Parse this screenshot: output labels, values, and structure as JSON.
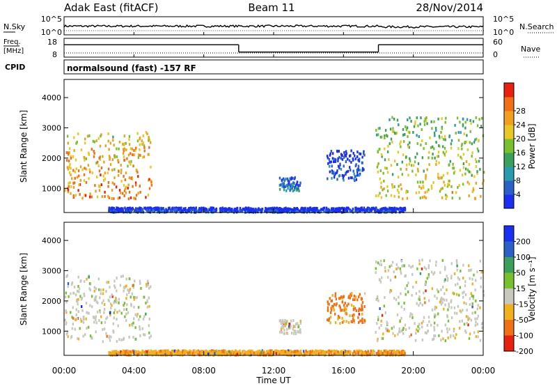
{
  "header": {
    "site": "Adak East (fitACF)",
    "beam": "Beam 11",
    "date": "28/Nov/2014"
  },
  "noise_panel": {
    "left_label": "N.Sky",
    "right_label": "N.Search",
    "left_ticks": [
      "10^5",
      "10^0"
    ],
    "right_ticks": [
      "10^5",
      "10^0"
    ]
  },
  "freq_panel": {
    "left_label_line1": "Freq.",
    "left_label_line2": "[MHz]",
    "right_label": "Nave",
    "left_ticks": [
      "18",
      "8"
    ],
    "right_ticks": [
      "60",
      "0"
    ],
    "freq_steps": [
      {
        "from_hour": 0,
        "to_hour": 10,
        "value": 14.6
      },
      {
        "from_hour": 10,
        "to_hour": 18,
        "value": 10.7
      },
      {
        "from_hour": 18,
        "to_hour": 24,
        "value": 14.6
      }
    ]
  },
  "cpid": {
    "label": "CPID",
    "text": "normalsound (fast) -157 RF"
  },
  "chart_data": [
    {
      "type": "heatmap",
      "name": "power",
      "ylabel": "Slant Range [km]",
      "ylim": [
        200,
        4600
      ],
      "yticks": [
        "1000",
        "2000",
        "3000",
        "4000"
      ],
      "colorbar_label": "Power [dB]",
      "colorbar_ticks": [
        "4",
        "8",
        "12",
        "16",
        "20",
        "24",
        "28"
      ],
      "colorbar_colors": [
        "#1a2ff0",
        "#2a60c8",
        "#2a9ab0",
        "#3aa05a",
        "#78c030",
        "#e8c828",
        "#f0a020",
        "#f07018",
        "#e82010"
      ],
      "regions": [
        {
          "t0": 0.0,
          "t1": 5.0,
          "r0": 700,
          "r1": 2900,
          "level": 0.85
        },
        {
          "t0": 12.3,
          "t1": 13.5,
          "r0": 950,
          "r1": 1400,
          "level": 0.25
        },
        {
          "t0": 15.0,
          "t1": 17.2,
          "r0": 1300,
          "r1": 2300,
          "level": 0.15
        },
        {
          "t0": 17.8,
          "t1": 24.0,
          "r0": 700,
          "r1": 3400,
          "level": 0.65
        },
        {
          "t0": 2.5,
          "t1": 19.5,
          "r0": 250,
          "r1": 400,
          "level": 0.1
        }
      ]
    },
    {
      "type": "heatmap",
      "name": "velocity",
      "ylabel": "Slant Range [km]",
      "ylim": [
        200,
        4600
      ],
      "yticks": [
        "1000",
        "2000",
        "3000",
        "4000"
      ],
      "colorbar_label": "Velocity [m s⁻¹]",
      "colorbar_ticks": [
        "200",
        "100",
        "50",
        "15",
        "-15",
        "-50",
        "-100",
        "-200"
      ],
      "colorbar_colors": [
        "#1a2ff0",
        "#2a60c8",
        "#3aa05a",
        "#78c030",
        "#c8c8be",
        "#f0b020",
        "#f07018",
        "#e82010"
      ],
      "regions": [
        {
          "t0": 0.0,
          "t1": 5.0,
          "r0": 700,
          "r1": 2900,
          "velocity": 0
        },
        {
          "t0": 12.3,
          "t1": 13.5,
          "r0": 950,
          "r1": 1400,
          "velocity": 0
        },
        {
          "t0": 15.0,
          "t1": 17.2,
          "r0": 1300,
          "r1": 2300,
          "velocity": -60
        },
        {
          "t0": 17.8,
          "t1": 24.0,
          "r0": 700,
          "r1": 3400,
          "velocity": 0
        },
        {
          "t0": 2.5,
          "t1": 19.5,
          "r0": 250,
          "r1": 400,
          "velocity": -40
        }
      ]
    }
  ],
  "x_axis": {
    "label": "Time UT",
    "ticks": [
      "00:00",
      "04:00",
      "08:00",
      "12:00",
      "16:00",
      "20:00",
      "00:00"
    ],
    "tick_hours": [
      0,
      4,
      8,
      12,
      16,
      20,
      24
    ]
  }
}
